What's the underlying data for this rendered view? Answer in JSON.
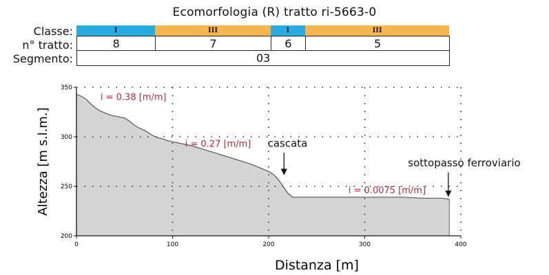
{
  "header": {
    "title": "Ecomorfologia (R) tratto ri-5663-0",
    "row_labels": {
      "classe": "Classe:",
      "tratto": "n° tratto:",
      "segmento": "Segmento:"
    }
  },
  "classe_bands": [
    {
      "label": "I",
      "from": 0,
      "to": 82,
      "color": "#29abe2"
    },
    {
      "label": "III",
      "from": 82,
      "to": 202,
      "color": "#f5b54f"
    },
    {
      "label": "I",
      "from": 202,
      "to": 238,
      "color": "#29abe2"
    },
    {
      "label": "III",
      "from": 238,
      "to": 388,
      "color": "#f5b54f"
    }
  ],
  "tratti": [
    {
      "label": "8",
      "from": 0,
      "to": 82
    },
    {
      "label": "7",
      "from": 82,
      "to": 202
    },
    {
      "label": "6",
      "from": 202,
      "to": 238
    },
    {
      "label": "5",
      "from": 238,
      "to": 388
    }
  ],
  "segmento": {
    "label": "03",
    "from": 0,
    "to": 388
  },
  "chart_data": {
    "type": "area",
    "xlabel": "Distanza [m]",
    "ylabel": "Altezza [m s.l.m.]",
    "xlim": [
      0,
      400
    ],
    "ylim": [
      200,
      350
    ],
    "xticks": [
      0,
      100,
      200,
      300,
      400
    ],
    "yticks": [
      200,
      250,
      300,
      350
    ],
    "grid": true,
    "fill_color": "#d4d4d4",
    "x": [
      0,
      5,
      10,
      15,
      20,
      25,
      30,
      35,
      40,
      45,
      50,
      55,
      60,
      65,
      70,
      75,
      80,
      85,
      90,
      95,
      100,
      110,
      120,
      130,
      140,
      150,
      160,
      170,
      180,
      190,
      200,
      205,
      210,
      215,
      220,
      225,
      230,
      240,
      260,
      280,
      300,
      320,
      340,
      360,
      380,
      388
    ],
    "y": [
      343,
      341,
      338,
      333,
      329,
      326,
      324,
      322,
      321,
      320,
      319,
      316,
      312,
      309,
      307,
      304,
      301,
      299,
      298,
      296,
      295,
      293,
      291,
      288,
      285,
      282,
      279,
      276,
      273,
      269,
      265,
      262,
      257,
      250,
      243,
      239,
      239,
      239,
      239,
      239,
      239,
      239,
      239,
      238,
      238,
      237
    ],
    "annotations": [
      {
        "text": "i = 0.38 [m/m]",
        "x": 25,
        "y": 337,
        "color": "#b8283d"
      },
      {
        "text": "i = 0.27 [m/m]",
        "x": 113,
        "y": 290,
        "color": "#b8283d"
      },
      {
        "text": "i = 0.0075 [m/m]",
        "x": 283,
        "y": 243,
        "color": "#b8283d"
      },
      {
        "text": "cascata",
        "x": 199,
        "y": 290,
        "color": "#111111",
        "arrow_from": [
          216,
          284
        ],
        "arrow_to": [
          216,
          262
        ]
      },
      {
        "text": "sottopasso ferroviario",
        "x": 345,
        "y": 270,
        "color": "#111111",
        "arrow_from": [
          387,
          264
        ],
        "arrow_to": [
          387,
          240
        ]
      }
    ]
  }
}
